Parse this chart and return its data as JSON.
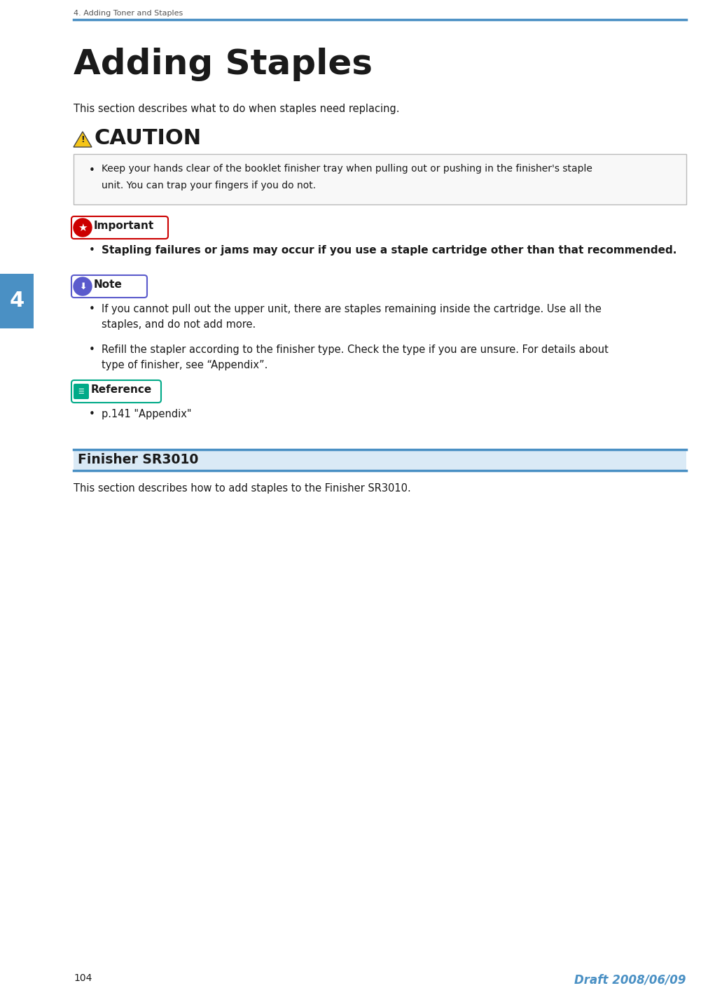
{
  "bg_color": "#ffffff",
  "header_text": "4. Adding Toner and Staples",
  "header_line_color": "#4a90c4",
  "title": "Adding Staples",
  "intro_text": "This section describes what to do when staples need replacing.",
  "caution_label": "CAUTION",
  "caution_triangle_color": "#f5c518",
  "caution_line1": "Keep your hands clear of the booklet finisher tray when pulling out or pushing in the finisher's staple",
  "caution_line2": "unit. You can trap your fingers if you do not.",
  "important_label": "Important",
  "important_star_color": "#cc0000",
  "important_bullet": "Stapling failures or jams may occur if you use a staple cartridge other than that recommended.",
  "note_label": "Note",
  "note_icon_color": "#5a5acc",
  "note_bullet1_line1": "If you cannot pull out the upper unit, there are staples remaining inside the cartridge. Use all the",
  "note_bullet1_line2": "staples, and do not add more.",
  "note_bullet2_line1": "Refill the stapler according to the finisher type. Check the type if you are unsure. For details about",
  "note_bullet2_line2": "type of finisher, see “Appendix”.",
  "reference_label": "Reference",
  "reference_icon_color": "#00aa88",
  "reference_bullet": "p.141 \"Appendix\"",
  "section_title": "Finisher SR3010",
  "section_line_color": "#4a90c4",
  "section_bg_color": "#daeaf6",
  "section_desc": "This section describes how to add staples to the Finisher SR3010.",
  "tab_color": "#4a90c4",
  "tab_text": "4",
  "footer_page": "104",
  "footer_draft": "Draft 2008/06/09",
  "footer_draft_color": "#4a90c4",
  "text_color": "#1a1a1a",
  "caution_box_border": "#bbbbbb",
  "caution_box_bg": "#f8f8f8"
}
